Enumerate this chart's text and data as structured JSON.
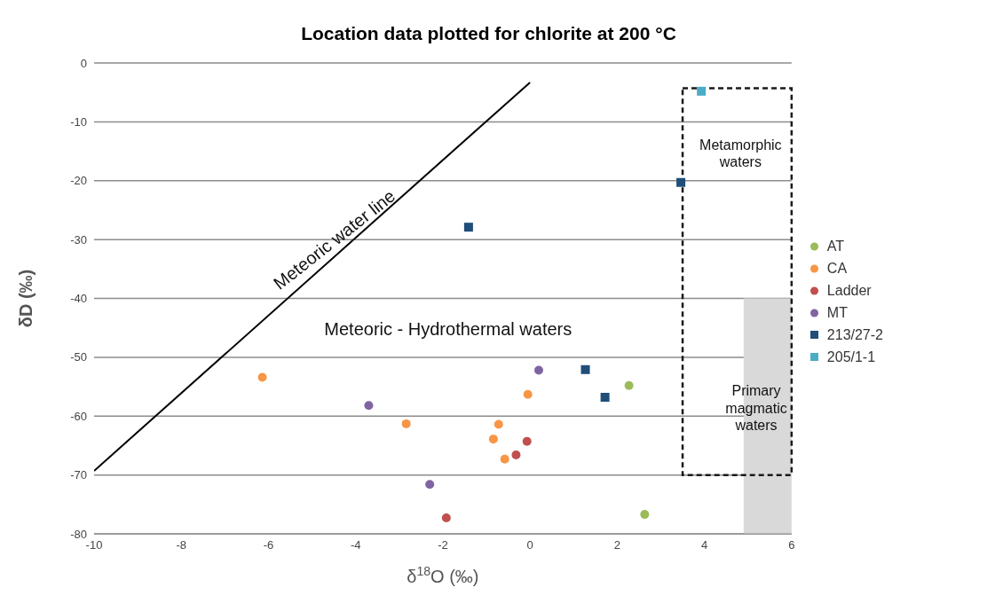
{
  "chart_data": {
    "type": "scatter",
    "title": "Location data plotted for chlorite at 200 °C",
    "xlabel": "δ$^{18}$O (‰)",
    "ylabel": "δD (‰)",
    "xlim": [
      -10,
      6
    ],
    "xticks": [
      -10,
      -8,
      -6,
      -4,
      -2,
      0,
      2,
      4,
      6
    ],
    "ylim": [
      -80,
      0
    ],
    "yticks": [
      -80,
      -70,
      -60,
      -50,
      -40,
      -30,
      -20,
      -10,
      0
    ],
    "grid": "y",
    "legend": "right",
    "series": [
      {
        "name": "AT",
        "color": "#9bbb59",
        "marker": "circle",
        "x": [
          2.27,
          2.63
        ],
        "values": [
          -54.8,
          -76.7
        ]
      },
      {
        "name": "CA",
        "color": "#f79646",
        "marker": "circle",
        "x": [
          -6.14,
          -0.05,
          -2.84,
          -0.72,
          -0.84,
          -0.58
        ],
        "values": [
          -53.4,
          -56.3,
          -61.3,
          -61.4,
          -63.9,
          -67.3
        ]
      },
      {
        "name": "Ladder",
        "color": "#c0504d",
        "marker": "circle",
        "x": [
          -0.07,
          -0.32,
          -1.92
        ],
        "values": [
          -64.3,
          -66.6,
          -77.3
        ]
      },
      {
        "name": "MT",
        "color": "#8064a2",
        "marker": "circle",
        "x": [
          0.2,
          -3.7,
          -2.3
        ],
        "values": [
          -52.2,
          -58.2,
          -71.6
        ]
      },
      {
        "name": "213/27-2",
        "color": "#1f4e79",
        "marker": "square",
        "x": [
          -1.41,
          1.27,
          1.72,
          3.46
        ],
        "values": [
          -27.9,
          -52.1,
          -56.8,
          -20.3
        ]
      },
      {
        "name": "205/1-1",
        "color": "#4bacc6",
        "marker": "square",
        "x": [
          3.93
        ],
        "values": [
          -4.8
        ]
      },
      {
        "type": "line",
        "color": "#000000",
        "line_style": "solid",
        "marker": "none",
        "x": [
          -10,
          0
        ],
        "values": [
          -69.3,
          -3.3
        ]
      }
    ],
    "annotations": [
      "Meteoric water line",
      "Meteoric - Hydrothermal waters",
      "Metamorphic waters",
      "Primary magmatic waters"
    ]
  }
}
